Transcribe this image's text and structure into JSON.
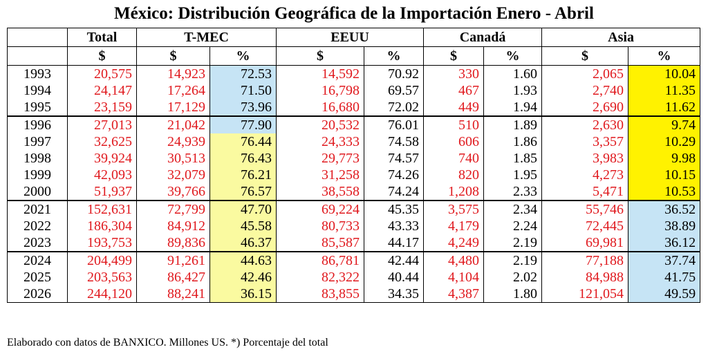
{
  "title": "México: Distribución Geográfica de la Importación Enero - Abril",
  "groups": [
    "Total",
    "T-MEC",
    "EEUU",
    "Canadá",
    "Asia"
  ],
  "subheaders": [
    "$",
    "$",
    "%",
    "$",
    "%",
    "$",
    "%",
    "$",
    "%"
  ],
  "rows": [
    [
      "1993",
      "20,575",
      "14,923",
      "72.53",
      "14,592",
      "70.92",
      "330",
      "1.60",
      "2,065",
      "10.04"
    ],
    [
      "1994",
      "24,147",
      "17,264",
      "71.50",
      "16,798",
      "69.57",
      "467",
      "1.93",
      "2,740",
      "11.35"
    ],
    [
      "1995",
      "23,159",
      "17,129",
      "73.96",
      "16,680",
      "72.02",
      "449",
      "1.94",
      "2,690",
      "11.62"
    ],
    [
      "1996",
      "27,013",
      "21,042",
      "77.90",
      "20,532",
      "76.01",
      "510",
      "1.89",
      "2,630",
      "9.74"
    ],
    [
      "1997",
      "32,625",
      "24,939",
      "76.44",
      "24,333",
      "74.58",
      "606",
      "1.86",
      "3,357",
      "10.29"
    ],
    [
      "1998",
      "39,924",
      "30,513",
      "76.43",
      "29,773",
      "74.57",
      "740",
      "1.85",
      "3,983",
      "9.98"
    ],
    [
      "1999",
      "42,093",
      "32,079",
      "76.21",
      "31,258",
      "74.26",
      "820",
      "1.95",
      "4,273",
      "10.15"
    ],
    [
      "2000",
      "51,937",
      "39,766",
      "76.57",
      "38,558",
      "74.24",
      "1,208",
      "2.33",
      "5,471",
      "10.53"
    ],
    [
      "2021",
      "152,631",
      "72,799",
      "47.70",
      "69,224",
      "45.35",
      "3,575",
      "2.34",
      "55,746",
      "36.52"
    ],
    [
      "2022",
      "186,304",
      "84,912",
      "45.58",
      "80,733",
      "43.33",
      "4,179",
      "2.24",
      "72,445",
      "38.89"
    ],
    [
      "2023",
      "193,753",
      "89,836",
      "46.37",
      "85,587",
      "44.17",
      "4,249",
      "2.19",
      "69,981",
      "36.12"
    ],
    [
      "2024",
      "204,499",
      "91,261",
      "44.63",
      "86,781",
      "42.44",
      "4,480",
      "2.19",
      "77,188",
      "37.74"
    ],
    [
      "2025",
      "203,563",
      "86,427",
      "42.46",
      "82,322",
      "40.44",
      "4,104",
      "2.02",
      "84,988",
      "41.75"
    ],
    [
      "2026",
      "244,120",
      "88,241",
      "36.15",
      "83,855",
      "34.35",
      "4,387",
      "1.80",
      "121,054",
      "49.59"
    ]
  ],
  "highlight_colors": {
    "blue": "#c6e4f5",
    "yellow": "#fafaa0",
    "bright_yellow": "#fff200",
    "money_text": "#e0191e"
  },
  "footnote": "Elaborado con datos de BANXICO. Millones US. *) Porcentaje del total"
}
